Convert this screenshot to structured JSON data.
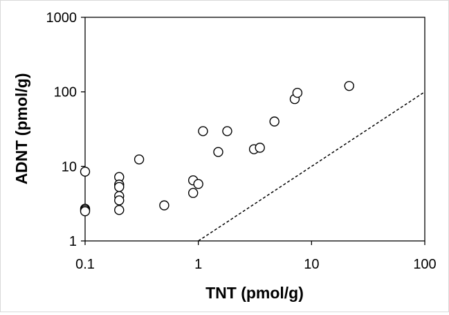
{
  "chart_data": {
    "type": "scatter",
    "title": "",
    "xlabel": "TNT (pmol/g)",
    "ylabel": "ADNT (pmol/g)",
    "xscale": "log",
    "yscale": "log",
    "xlim": [
      0.1,
      100
    ],
    "ylim": [
      1,
      1000
    ],
    "grid": false,
    "legend": "none",
    "x_ticks": [
      "0.1",
      "1",
      "10",
      "100"
    ],
    "y_ticks": [
      "1",
      "10",
      "100",
      "1000"
    ],
    "series": [
      {
        "marker": "open-circle",
        "points": [
          {
            "x": 0.1,
            "y": 8.5
          },
          {
            "x": 0.1,
            "y": 2.7
          },
          {
            "x": 0.1,
            "y": 2.6
          },
          {
            "x": 0.1,
            "y": 2.5
          },
          {
            "x": 0.2,
            "y": 7.2
          },
          {
            "x": 0.2,
            "y": 5.7
          },
          {
            "x": 0.2,
            "y": 5.3
          },
          {
            "x": 0.2,
            "y": 4.0
          },
          {
            "x": 0.2,
            "y": 3.5
          },
          {
            "x": 0.2,
            "y": 2.6
          },
          {
            "x": 0.3,
            "y": 12.4
          },
          {
            "x": 0.5,
            "y": 3.0
          },
          {
            "x": 0.9,
            "y": 6.5
          },
          {
            "x": 0.9,
            "y": 4.4
          },
          {
            "x": 1.0,
            "y": 5.8
          },
          {
            "x": 1.1,
            "y": 29.7
          },
          {
            "x": 1.5,
            "y": 15.6
          },
          {
            "x": 1.8,
            "y": 29.7
          },
          {
            "x": 3.1,
            "y": 17.0
          },
          {
            "x": 3.5,
            "y": 17.8
          },
          {
            "x": 4.7,
            "y": 40.0
          },
          {
            "x": 7.1,
            "y": 80.0
          },
          {
            "x": 7.5,
            "y": 97.0
          },
          {
            "x": 21.5,
            "y": 120.0
          }
        ]
      }
    ],
    "reference_line": {
      "style": "dashed",
      "x": [
        1,
        100
      ],
      "y": [
        1,
        100
      ]
    },
    "colors": {
      "marker_stroke": "#000000",
      "marker_fill": "#ffffff",
      "axis": "#000000"
    }
  }
}
